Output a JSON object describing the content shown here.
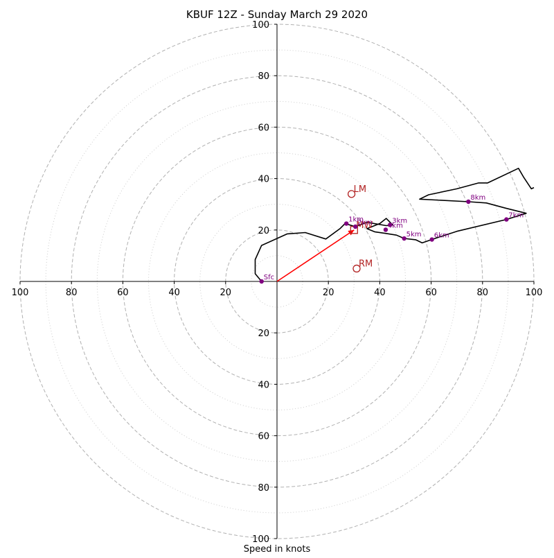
{
  "chart_data": {
    "type": "hodograph",
    "title": "KBUF 12Z - Sunday March 29 2020",
    "xlabel": "Speed in knots",
    "range": [
      -100,
      100
    ],
    "rings_major": [
      20,
      40,
      60,
      80,
      100
    ],
    "rings_minor": [
      10,
      30,
      50,
      70,
      90
    ],
    "x_ticks": [
      {
        "value": -100,
        "label": "100"
      },
      {
        "value": -80,
        "label": "80"
      },
      {
        "value": -60,
        "label": "60"
      },
      {
        "value": -40,
        "label": "40"
      },
      {
        "value": -20,
        "label": "20"
      },
      {
        "value": 20,
        "label": "20"
      },
      {
        "value": 40,
        "label": "40"
      },
      {
        "value": 60,
        "label": "60"
      },
      {
        "value": 80,
        "label": "80"
      },
      {
        "value": 100,
        "label": "100"
      }
    ],
    "y_ticks": [
      {
        "value": 100,
        "label": "100"
      },
      {
        "value": 80,
        "label": "80"
      },
      {
        "value": 60,
        "label": "60"
      },
      {
        "value": 40,
        "label": "40"
      },
      {
        "value": 20,
        "label": "20"
      },
      {
        "value": -20,
        "label": "20"
      },
      {
        "value": -40,
        "label": "40"
      },
      {
        "value": -60,
        "label": "60"
      },
      {
        "value": -80,
        "label": "80"
      },
      {
        "value": -100,
        "label": "100"
      }
    ],
    "hodo_color": "#000000",
    "profile": [
      [
        -6,
        0
      ],
      [
        -8.5,
        3
      ],
      [
        -8.5,
        8.5
      ],
      [
        -6,
        14
      ],
      [
        4,
        18.5
      ],
      [
        11,
        19
      ],
      [
        19,
        16.5
      ],
      [
        24.5,
        20.5
      ],
      [
        26.5,
        22.5
      ],
      [
        30.5,
        21.3
      ],
      [
        35,
        23
      ],
      [
        42.5,
        21.7
      ],
      [
        45,
        22
      ],
      [
        42.5,
        24.5
      ],
      [
        40,
        22.5
      ],
      [
        35,
        20.5
      ],
      [
        38,
        19.3
      ],
      [
        42,
        18.7
      ],
      [
        46.5,
        18
      ],
      [
        49.5,
        16.7
      ],
      [
        54,
        16.2
      ],
      [
        56.5,
        15
      ],
      [
        60.3,
        16.3
      ],
      [
        70,
        19.5
      ],
      [
        89.3,
        24.1
      ],
      [
        97,
        26.5
      ],
      [
        89,
        28.5
      ],
      [
        81.5,
        30.5
      ],
      [
        74.5,
        31
      ],
      [
        55.5,
        32
      ],
      [
        59,
        33.7
      ],
      [
        70,
        36
      ],
      [
        78.5,
        38.3
      ],
      [
        82,
        38.3
      ],
      [
        94,
        44
      ],
      [
        96,
        40.5
      ],
      [
        99,
        36
      ],
      [
        100,
        36.5
      ]
    ],
    "height_markers": [
      {
        "label": "Sfc",
        "u": -6,
        "v": 0
      },
      {
        "label": "1km",
        "u": 27,
        "v": 22.5
      },
      {
        "label": "2km",
        "u": 30.5,
        "v": 21.3
      },
      {
        "label": "3km",
        "u": 44,
        "v": 22
      },
      {
        "label": "4km",
        "u": 42.3,
        "v": 20.1
      },
      {
        "label": "5km",
        "u": 49.5,
        "v": 16.7
      },
      {
        "label": "6km",
        "u": 60.3,
        "v": 16.3
      },
      {
        "label": "7km",
        "u": 89.3,
        "v": 24.1
      },
      {
        "label": "8km",
        "u": 74.5,
        "v": 31
      }
    ],
    "marker_color": "#800080",
    "storm_motion": [
      {
        "label": "LM",
        "u": 29,
        "v": 34,
        "symbol": "circle"
      },
      {
        "label": "RM",
        "u": 31,
        "v": 5,
        "symbol": "circle"
      },
      {
        "label": "MW",
        "u": 30,
        "v": 20,
        "symbol": "square"
      }
    ],
    "storm_color": "#b22222",
    "shear_vector": {
      "from": [
        0,
        0
      ],
      "to": [
        30,
        20
      ],
      "color": "#ff0000"
    }
  }
}
